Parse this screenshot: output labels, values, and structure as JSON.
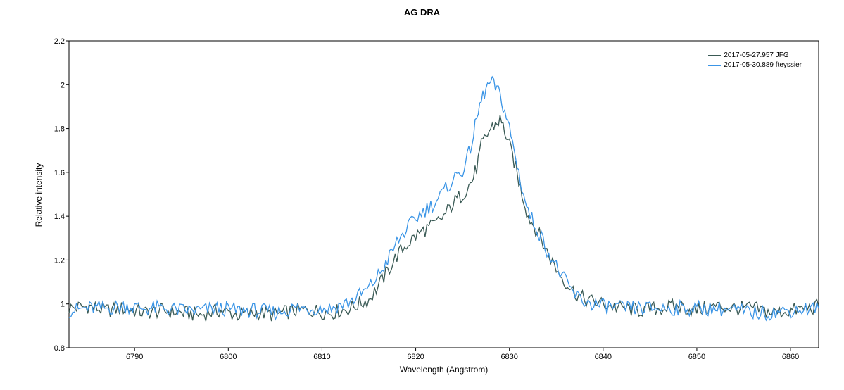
{
  "chart_data": {
    "type": "line",
    "title": "AG DRA",
    "xlabel": "Wavelength (Angstrom)",
    "ylabel": "Relative intensity",
    "xlim": [
      6783,
      6863
    ],
    "ylim": [
      0.8,
      2.2
    ],
    "x_ticks": [
      6790,
      6800,
      6810,
      6820,
      6830,
      6840,
      6850,
      6860
    ],
    "y_ticks": [
      0.8,
      1,
      1.2,
      1.4,
      1.6,
      1.8,
      2,
      2.2
    ],
    "legend_position": "top-right",
    "grid": false,
    "x": [
      6783,
      6785,
      6787,
      6789,
      6791,
      6793,
      6795,
      6797,
      6799,
      6801,
      6803,
      6805,
      6807,
      6809,
      6811,
      6813,
      6815,
      6816,
      6817,
      6818,
      6819,
      6820,
      6821,
      6822,
      6823,
      6824,
      6825,
      6825.5,
      6826,
      6826.5,
      6827,
      6827.5,
      6828,
      6828.5,
      6829,
      6829.5,
      6830,
      6830.5,
      6831,
      6831.5,
      6832,
      6833,
      6834,
      6835,
      6836,
      6837,
      6838,
      6840,
      6842,
      6844,
      6846,
      6848,
      6850,
      6852,
      6854,
      6856,
      6858,
      6860,
      6862,
      6863
    ],
    "series": [
      {
        "name": "2017-05-27.957  JFG",
        "color": "#3a5a55",
        "values": [
          0.98,
          0.99,
          0.97,
          0.98,
          0.96,
          0.97,
          0.96,
          0.95,
          0.97,
          0.95,
          0.96,
          0.95,
          0.97,
          0.97,
          0.96,
          0.98,
          1.02,
          1.08,
          1.15,
          1.22,
          1.27,
          1.31,
          1.34,
          1.36,
          1.4,
          1.46,
          1.5,
          1.53,
          1.56,
          1.62,
          1.72,
          1.76,
          1.8,
          1.82,
          1.84,
          1.79,
          1.72,
          1.65,
          1.56,
          1.48,
          1.4,
          1.33,
          1.24,
          1.16,
          1.1,
          1.05,
          1.02,
          1.0,
          0.98,
          0.97,
          0.98,
          0.99,
          0.97,
          0.99,
          0.98,
          0.98,
          0.96,
          0.97,
          0.98,
          0.99
        ]
      },
      {
        "name": "2017-05-30.889  fteyssier",
        "color": "#3b95e6",
        "values": [
          0.97,
          0.98,
          0.98,
          0.99,
          0.98,
          0.98,
          0.97,
          0.97,
          0.98,
          0.97,
          0.97,
          0.96,
          0.98,
          0.98,
          0.98,
          1.01,
          1.07,
          1.13,
          1.2,
          1.28,
          1.34,
          1.39,
          1.43,
          1.46,
          1.51,
          1.57,
          1.61,
          1.66,
          1.74,
          1.84,
          1.93,
          1.98,
          2.01,
          1.99,
          1.95,
          1.88,
          1.8,
          1.7,
          1.6,
          1.5,
          1.42,
          1.34,
          1.25,
          1.17,
          1.1,
          1.04,
          1.01,
          0.99,
          0.98,
          0.98,
          0.98,
          0.98,
          0.98,
          0.98,
          0.97,
          0.96,
          0.96,
          0.97,
          0.98,
          0.98
        ]
      }
    ]
  }
}
